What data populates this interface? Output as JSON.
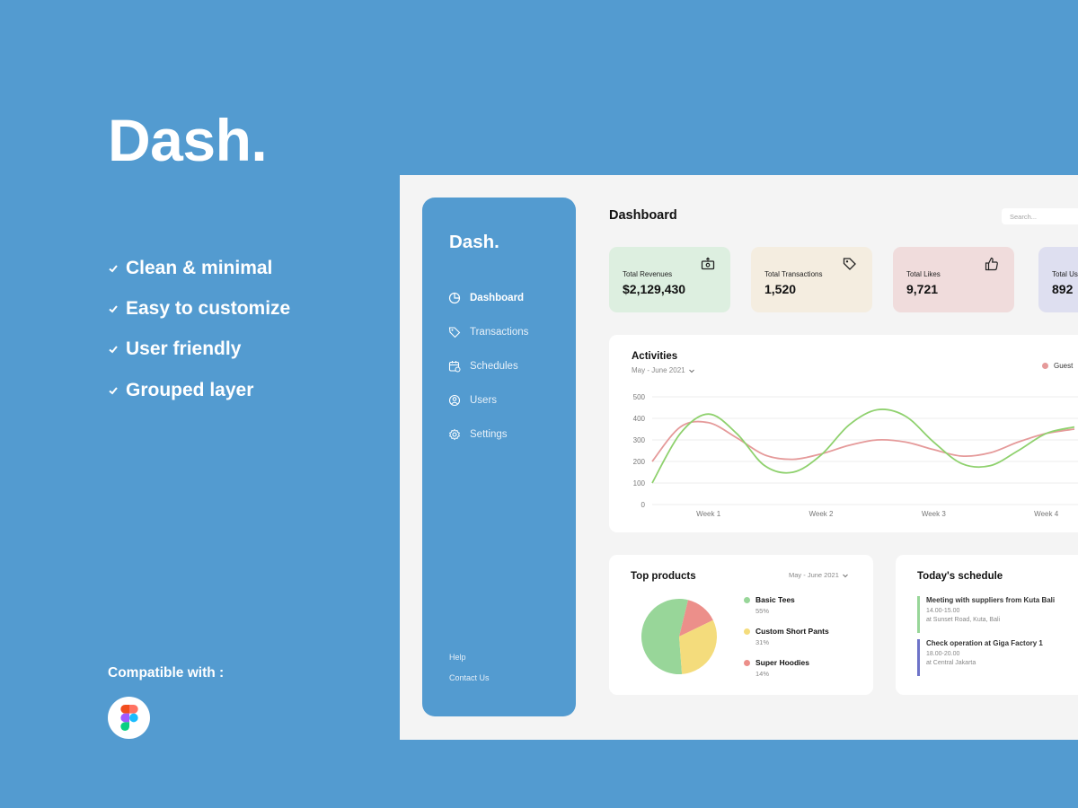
{
  "promo": {
    "title": "Dash.",
    "features": [
      "Clean & minimal",
      "Easy to customize",
      "User friendly",
      "Grouped layer"
    ],
    "compatible_label": "Compatible with :",
    "compatible_tool_icon": "figma-icon"
  },
  "sidebar": {
    "logo": "Dash.",
    "items": [
      {
        "label": "Dashboard",
        "icon": "pie-chart-icon",
        "active": true
      },
      {
        "label": "Transactions",
        "icon": "tag-icon",
        "active": false
      },
      {
        "label": "Schedules",
        "icon": "calendar-icon",
        "active": false
      },
      {
        "label": "Users",
        "icon": "user-icon",
        "active": false
      },
      {
        "label": "Settings",
        "icon": "gear-icon",
        "active": false
      }
    ],
    "footer": [
      "Help",
      "Contact Us"
    ]
  },
  "header": {
    "title": "Dashboard",
    "search_placeholder": "Search..."
  },
  "stats": [
    {
      "label": "Total Revenues",
      "value": "$2,129,430",
      "color": "#ddefe0",
      "icon": "money-icon"
    },
    {
      "label": "Total Transactions",
      "value": "1,520",
      "color": "#f4ede0",
      "icon": "tag-icon"
    },
    {
      "label": "Total Likes",
      "value": "9,721",
      "color": "#f0dcdc",
      "icon": "thumbs-up-icon"
    },
    {
      "label": "Total Us",
      "value": "892",
      "color": "#dedff0",
      "icon": "users-icon"
    }
  ],
  "activities": {
    "title": "Activities",
    "range": "May - June 2021"
  },
  "chart_data": {
    "type": "line",
    "title": "Activities",
    "x_ticks": [
      "Week 1",
      "Week 2",
      "Week 3",
      "Week 4"
    ],
    "ylim": [
      0,
      500
    ],
    "y_ticks": [
      0,
      100,
      200,
      300,
      400,
      500
    ],
    "grid": true,
    "legend_position": "top-right",
    "x": [
      0.5,
      0.75,
      1,
      1.25,
      1.5,
      1.75,
      2,
      2.25,
      2.5,
      2.75,
      3,
      3.25,
      3.5,
      3.75,
      4,
      4.25
    ],
    "series": [
      {
        "name": "Guest",
        "color": "#e59a9a",
        "values": [
          200,
          360,
          380,
          310,
          230,
          210,
          235,
          275,
          300,
          290,
          255,
          225,
          240,
          290,
          330,
          350
        ]
      },
      {
        "name": "",
        "color": "#8fd16e",
        "values": [
          100,
          330,
          420,
          330,
          180,
          150,
          230,
          370,
          440,
          410,
          290,
          190,
          180,
          250,
          330,
          360
        ]
      }
    ]
  },
  "top_products": {
    "title": "Top products",
    "range": "May - June 2021",
    "items": [
      {
        "name": "Basic Tees",
        "percent": "55%",
        "value": 55,
        "color": "#98d699"
      },
      {
        "name": "Custom Short Pants",
        "percent": "31%",
        "value": 31,
        "color": "#f4dc7c"
      },
      {
        "name": "Super Hoodies",
        "percent": "14%",
        "value": 14,
        "color": "#ec8f8a"
      }
    ]
  },
  "schedule": {
    "title": "Today's schedule",
    "events": [
      {
        "title": "Meeting with suppliers from Kuta Bali",
        "time": "14.00-15.00",
        "place": "at Sunset Road, Kuta, Bali",
        "color": "#98d699"
      },
      {
        "title": "Check operation at Giga Factory 1",
        "time": "18.00-20.00",
        "place": "at Central Jakarta",
        "color": "#6e73c8"
      }
    ]
  }
}
